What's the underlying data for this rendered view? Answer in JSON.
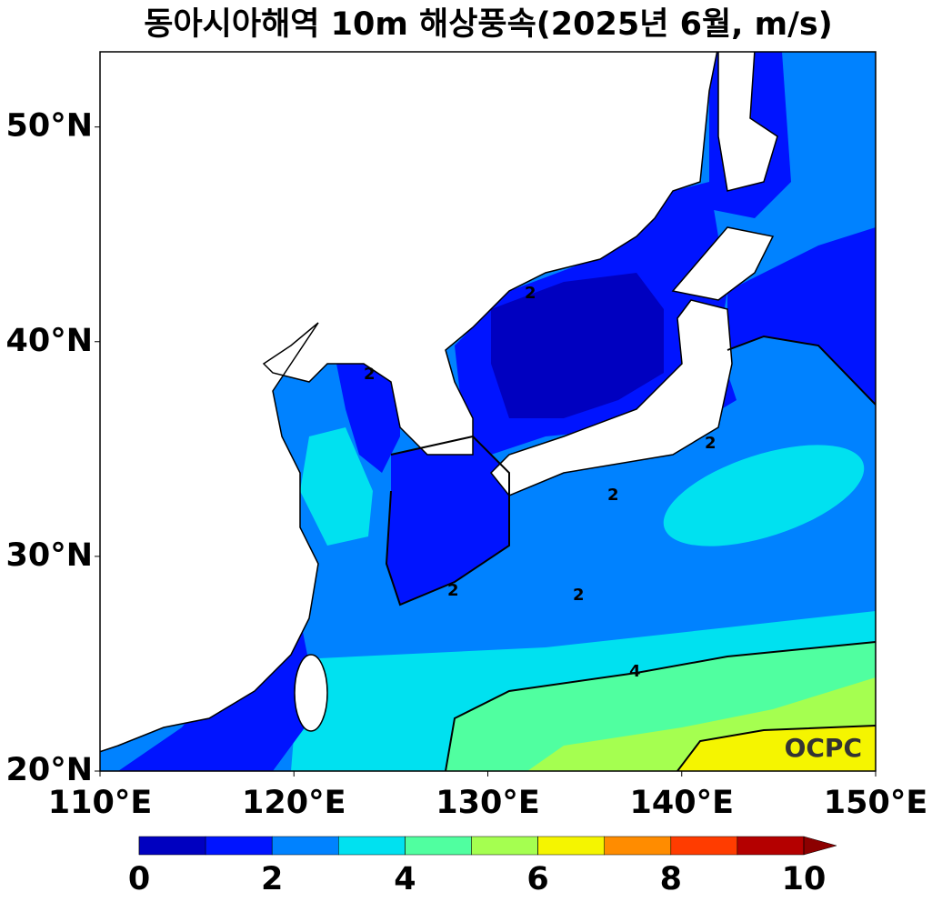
{
  "chart_data": {
    "type": "filled-contour-map",
    "title": "동아시아해역 10m 해상풍속(2025년 6월, m/s)",
    "xlim": [
      110,
      150
    ],
    "ylim": [
      20,
      53.5
    ],
    "xticks": [
      {
        "value": 110,
        "label": "110°E"
      },
      {
        "value": 120,
        "label": "120°E"
      },
      {
        "value": 130,
        "label": "130°E"
      },
      {
        "value": 140,
        "label": "140°E"
      },
      {
        "value": 150,
        "label": "150°E"
      }
    ],
    "yticks": [
      {
        "value": 20,
        "label": "20°N"
      },
      {
        "value": 30,
        "label": "30°N"
      },
      {
        "value": 40,
        "label": "40°N"
      },
      {
        "value": 50,
        "label": "50°N"
      }
    ],
    "colorbar": {
      "lim": [
        0,
        10
      ],
      "ticks": [
        0,
        2,
        4,
        6,
        8,
        10
      ],
      "colors": [
        "#0000c0",
        "#0014ff",
        "#0082ff",
        "#00e1f0",
        "#50ffa0",
        "#a5ff50",
        "#f5f500",
        "#ff8c00",
        "#ff3c00",
        "#b40000"
      ],
      "over_color": "#8c0000"
    },
    "contour_labels": [
      "2",
      "2",
      "2",
      "2",
      "2",
      "2",
      "4"
    ],
    "watermark": "OCPC"
  }
}
